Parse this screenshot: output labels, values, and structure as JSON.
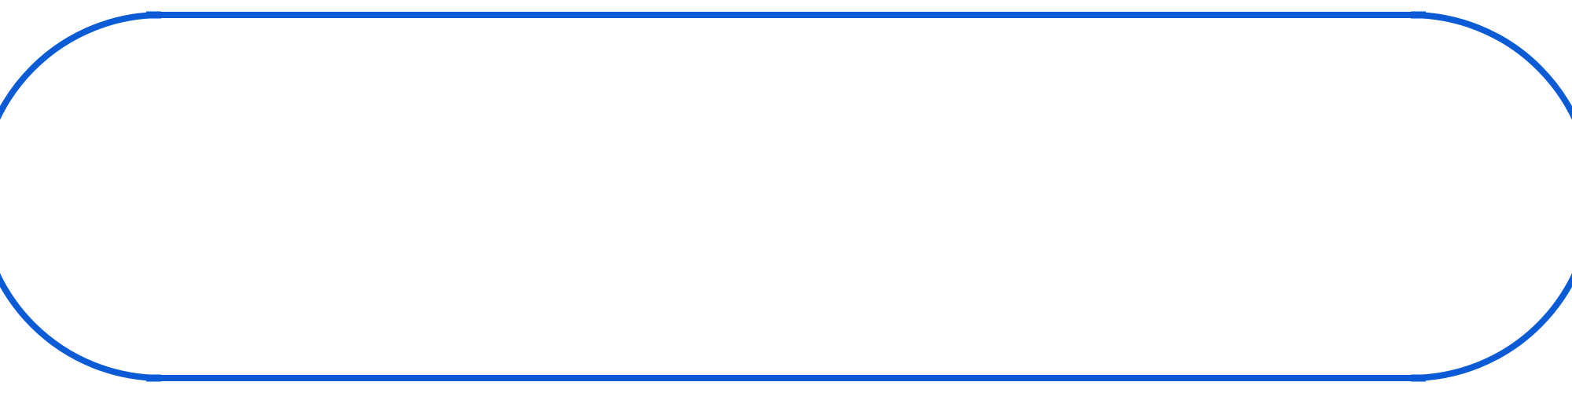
{
  "button": {
    "label": "",
    "outline_color": "#0b5bd7",
    "fill_color": "#ffffff"
  }
}
